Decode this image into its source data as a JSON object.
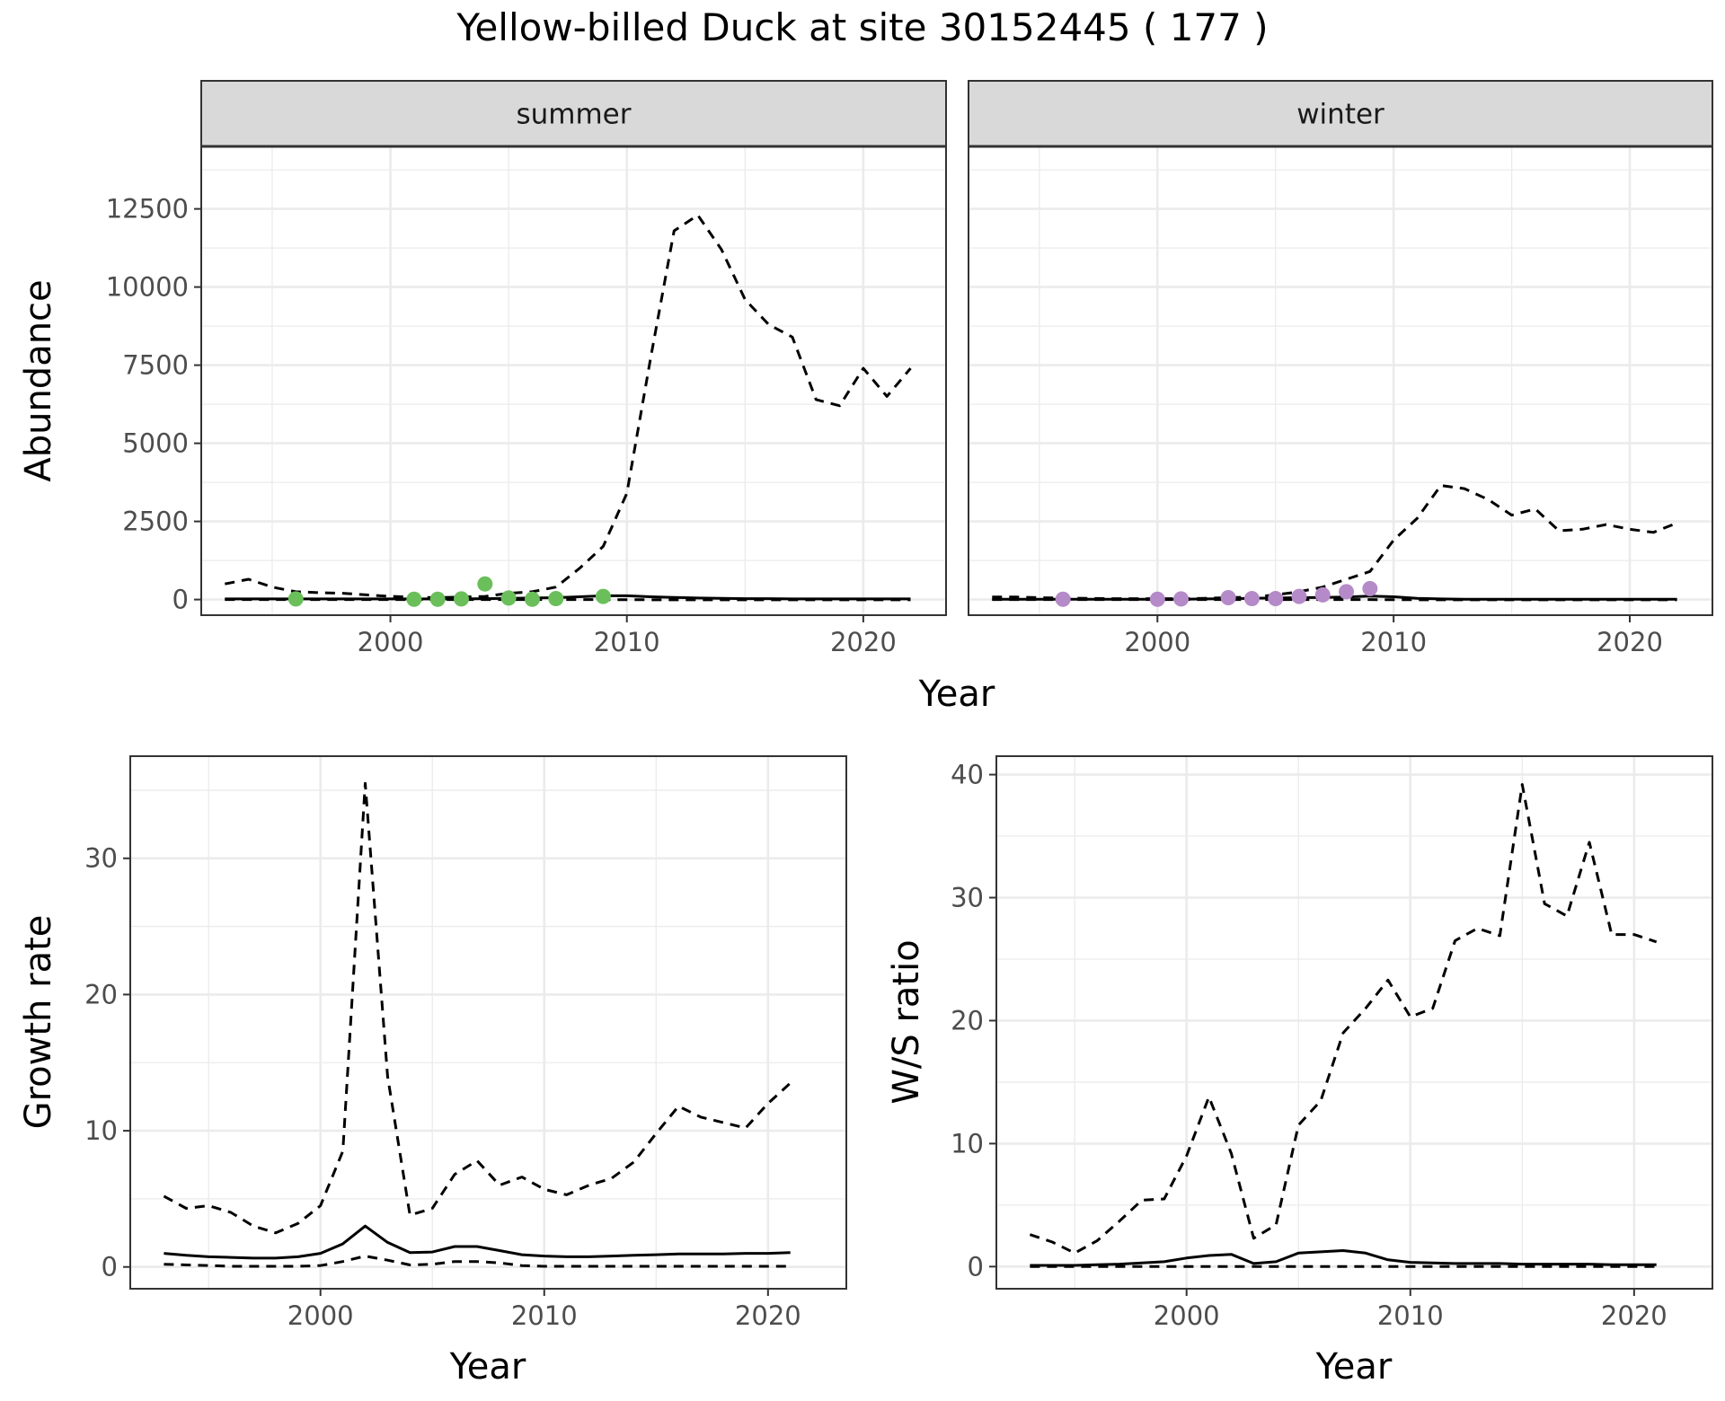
{
  "title": "Yellow-billed Duck at site 30152445 ( 177 )",
  "colors": {
    "summer_points": "#6abf5a",
    "winter_points": "#b58ac8",
    "lines": "#000000",
    "strip_bg": "#d9d9d9",
    "grid": "#ebebeb"
  },
  "chart_data": [
    {
      "type": "line",
      "panel": "summer",
      "strip_label": "summer",
      "ylabel": "Abundance",
      "xlabel": "Year",
      "xlim": [
        1992,
        2023.5
      ],
      "ylim": [
        -500,
        14500
      ],
      "xticks": [
        2000,
        2010,
        2020
      ],
      "yticks": [
        0,
        2500,
        5000,
        7500,
        10000,
        12500
      ],
      "grid": true,
      "series": [
        {
          "style": "dashed",
          "x": [
            1993,
            1994,
            1995,
            1996,
            1997,
            1998,
            1999,
            2000,
            2001,
            2002,
            2003,
            2004,
            2005,
            2006,
            2007,
            2008,
            2009,
            2010,
            2011,
            2012,
            2013,
            2014,
            2015,
            2016,
            2017,
            2018,
            2019,
            2020,
            2021,
            2022
          ],
          "y": [
            500,
            650,
            400,
            250,
            220,
            200,
            150,
            100,
            80,
            60,
            80,
            100,
            200,
            250,
            400,
            1000,
            1700,
            3400,
            7700,
            11800,
            12300,
            11200,
            9600,
            8800,
            8400,
            6400,
            6200,
            7400,
            6500,
            7400
          ]
        },
        {
          "style": "solid",
          "x": [
            1993,
            1994,
            1995,
            1996,
            1997,
            1998,
            1999,
            2000,
            2001,
            2002,
            2003,
            2004,
            2005,
            2006,
            2007,
            2008,
            2009,
            2010,
            2011,
            2012,
            2013,
            2014,
            2015,
            2016,
            2017,
            2018,
            2019,
            2020,
            2021,
            2022
          ],
          "y": [
            20,
            20,
            20,
            20,
            20,
            20,
            20,
            20,
            20,
            20,
            20,
            30,
            40,
            50,
            60,
            90,
            120,
            120,
            90,
            70,
            50,
            40,
            30,
            30,
            20,
            20,
            20,
            20,
            20,
            20
          ]
        },
        {
          "style": "dashed",
          "x": [
            1993,
            1996,
            2000,
            2004,
            2008,
            2012,
            2016,
            2020,
            2022
          ],
          "y": [
            0,
            0,
            0,
            0,
            0,
            -10,
            -10,
            -10,
            -10
          ]
        }
      ],
      "points": {
        "x": [
          1996,
          2001,
          2002,
          2003,
          2004,
          2005,
          2006,
          2007,
          2009
        ],
        "y": [
          20,
          10,
          10,
          20,
          500,
          50,
          10,
          30,
          100
        ]
      }
    },
    {
      "type": "line",
      "panel": "winter",
      "strip_label": "winter",
      "ylabel": "Abundance",
      "xlabel": "Year",
      "xlim": [
        1992,
        2023.5
      ],
      "ylim": [
        -500,
        14500
      ],
      "xticks": [
        2000,
        2010,
        2020
      ],
      "yticks": [
        0,
        2500,
        5000,
        7500,
        10000,
        12500
      ],
      "grid": true,
      "series": [
        {
          "style": "dashed",
          "x": [
            1993,
            1994,
            1995,
            1996,
            1997,
            1998,
            1999,
            2000,
            2001,
            2002,
            2003,
            2004,
            2005,
            2006,
            2007,
            2008,
            2009,
            2010,
            2011,
            2012,
            2013,
            2014,
            2015,
            2016,
            2017,
            2018,
            2019,
            2020,
            2021,
            2022
          ],
          "y": [
            80,
            80,
            60,
            50,
            40,
            30,
            30,
            30,
            30,
            40,
            60,
            80,
            150,
            250,
            400,
            650,
            900,
            1900,
            2600,
            3650,
            3550,
            3200,
            2700,
            2900,
            2200,
            2250,
            2400,
            2250,
            2150,
            2450
          ]
        },
        {
          "style": "solid",
          "x": [
            1993,
            1994,
            1995,
            1996,
            1997,
            1998,
            1999,
            2000,
            2001,
            2002,
            2003,
            2004,
            2005,
            2006,
            2007,
            2008,
            2009,
            2010,
            2011,
            2012,
            2013,
            2014,
            2015,
            2016,
            2017,
            2018,
            2019,
            2020,
            2021,
            2022
          ],
          "y": [
            10,
            10,
            10,
            10,
            10,
            10,
            10,
            10,
            10,
            20,
            30,
            40,
            50,
            60,
            70,
            80,
            110,
            90,
            40,
            20,
            10,
            10,
            10,
            10,
            10,
            10,
            10,
            10,
            10,
            10
          ]
        },
        {
          "style": "dashed",
          "x": [
            1993,
            1996,
            2000,
            2004,
            2008,
            2012,
            2016,
            2020,
            2022
          ],
          "y": [
            0,
            0,
            0,
            0,
            0,
            -10,
            -10,
            -10,
            -10
          ]
        }
      ],
      "points": {
        "x": [
          1996,
          2000,
          2001,
          2003,
          2004,
          2005,
          2006,
          2007,
          2008,
          2009
        ],
        "y": [
          10,
          10,
          20,
          60,
          30,
          30,
          100,
          150,
          250,
          350
        ]
      }
    },
    {
      "type": "line",
      "panel": "growth",
      "ylabel": "Growth rate",
      "xlabel": "Year",
      "xlim": [
        1991.5,
        2023.5
      ],
      "ylim": [
        -1.6,
        37.5
      ],
      "xticks": [
        2000,
        2010,
        2020
      ],
      "yticks": [
        0,
        10,
        20,
        30
      ],
      "grid": true,
      "series": [
        {
          "style": "dashed",
          "x": [
            1993,
            1994,
            1995,
            1996,
            1997,
            1998,
            1999,
            2000,
            2001,
            2002,
            2003,
            2004,
            2005,
            2006,
            2007,
            2008,
            2009,
            2010,
            2011,
            2012,
            2013,
            2014,
            2015,
            2016,
            2017,
            2018,
            2019,
            2020,
            2021
          ],
          "y": [
            5.2,
            4.3,
            4.5,
            4.0,
            3.0,
            2.5,
            3.2,
            4.5,
            8.5,
            35.5,
            14.0,
            3.8,
            4.3,
            6.8,
            7.8,
            6.0,
            6.6,
            5.7,
            5.3,
            6.0,
            6.5,
            7.7,
            9.8,
            11.8,
            11.0,
            10.6,
            10.2,
            12.0,
            13.5
          ]
        },
        {
          "style": "solid",
          "x": [
            1993,
            1994,
            1995,
            1996,
            1997,
            1998,
            1999,
            2000,
            2001,
            2002,
            2003,
            2004,
            2005,
            2006,
            2007,
            2008,
            2009,
            2010,
            2011,
            2012,
            2013,
            2014,
            2015,
            2016,
            2017,
            2018,
            2019,
            2020,
            2021
          ],
          "y": [
            1.0,
            0.85,
            0.75,
            0.7,
            0.65,
            0.65,
            0.75,
            1.0,
            1.7,
            3.0,
            1.8,
            1.05,
            1.1,
            1.5,
            1.5,
            1.2,
            0.9,
            0.8,
            0.75,
            0.75,
            0.8,
            0.85,
            0.9,
            0.95,
            0.95,
            0.95,
            1.0,
            1.0,
            1.05
          ]
        },
        {
          "style": "dashed",
          "x": [
            1993,
            1994,
            1995,
            1996,
            1997,
            1998,
            1999,
            2000,
            2001,
            2002,
            2003,
            2004,
            2005,
            2006,
            2007,
            2008,
            2009,
            2010,
            2011,
            2012,
            2013,
            2014,
            2015,
            2016,
            2017,
            2018,
            2019,
            2020,
            2021
          ],
          "y": [
            0.2,
            0.15,
            0.1,
            0.05,
            0.05,
            0.05,
            0.05,
            0.1,
            0.4,
            0.8,
            0.5,
            0.15,
            0.2,
            0.4,
            0.4,
            0.3,
            0.1,
            0.05,
            0.05,
            0.05,
            0.05,
            0.05,
            0.05,
            0.05,
            0.05,
            0.05,
            0.05,
            0.05,
            0.05
          ]
        }
      ]
    },
    {
      "type": "line",
      "panel": "ratio",
      "ylabel": "W/S ratio",
      "xlabel": "Year",
      "xlim": [
        1991.5,
        2023.5
      ],
      "ylim": [
        -1.8,
        41.5
      ],
      "xticks": [
        2000,
        2010,
        2020
      ],
      "yticks": [
        0,
        10,
        20,
        30,
        40
      ],
      "grid": true,
      "series": [
        {
          "style": "dashed",
          "x": [
            1993,
            1994,
            1995,
            1996,
            1997,
            1998,
            1999,
            2000,
            2001,
            2002,
            2003,
            2004,
            2005,
            2006,
            2007,
            2008,
            2009,
            2010,
            2011,
            2012,
            2013,
            2014,
            2015,
            2016,
            2017,
            2018,
            2019,
            2020,
            2021
          ],
          "y": [
            2.6,
            2.0,
            1.1,
            2.1,
            3.7,
            5.4,
            5.5,
            9.0,
            13.8,
            9.2,
            2.3,
            3.4,
            11.5,
            13.5,
            19.0,
            21.0,
            23.3,
            20.3,
            21.0,
            26.5,
            27.5,
            26.9,
            39.2,
            29.5,
            28.5,
            34.5,
            27.0,
            27.0,
            26.4
          ]
        },
        {
          "style": "solid",
          "x": [
            1993,
            1994,
            1995,
            1996,
            1997,
            1998,
            1999,
            2000,
            2001,
            2002,
            2003,
            2004,
            2005,
            2006,
            2007,
            2008,
            2009,
            2010,
            2011,
            2012,
            2013,
            2014,
            2015,
            2016,
            2017,
            2018,
            2019,
            2020,
            2021
          ],
          "y": [
            0.1,
            0.1,
            0.1,
            0.15,
            0.2,
            0.3,
            0.4,
            0.7,
            0.9,
            1.0,
            0.25,
            0.4,
            1.1,
            1.2,
            1.3,
            1.1,
            0.55,
            0.35,
            0.3,
            0.25,
            0.25,
            0.25,
            0.2,
            0.2,
            0.2,
            0.2,
            0.15,
            0.15,
            0.15
          ]
        },
        {
          "style": "dashed",
          "x": [
            1993,
            1996,
            2000,
            2004,
            2008,
            2012,
            2016,
            2020,
            2021
          ],
          "y": [
            0,
            0,
            0,
            0,
            0,
            0,
            0,
            0,
            0
          ]
        }
      ]
    }
  ]
}
